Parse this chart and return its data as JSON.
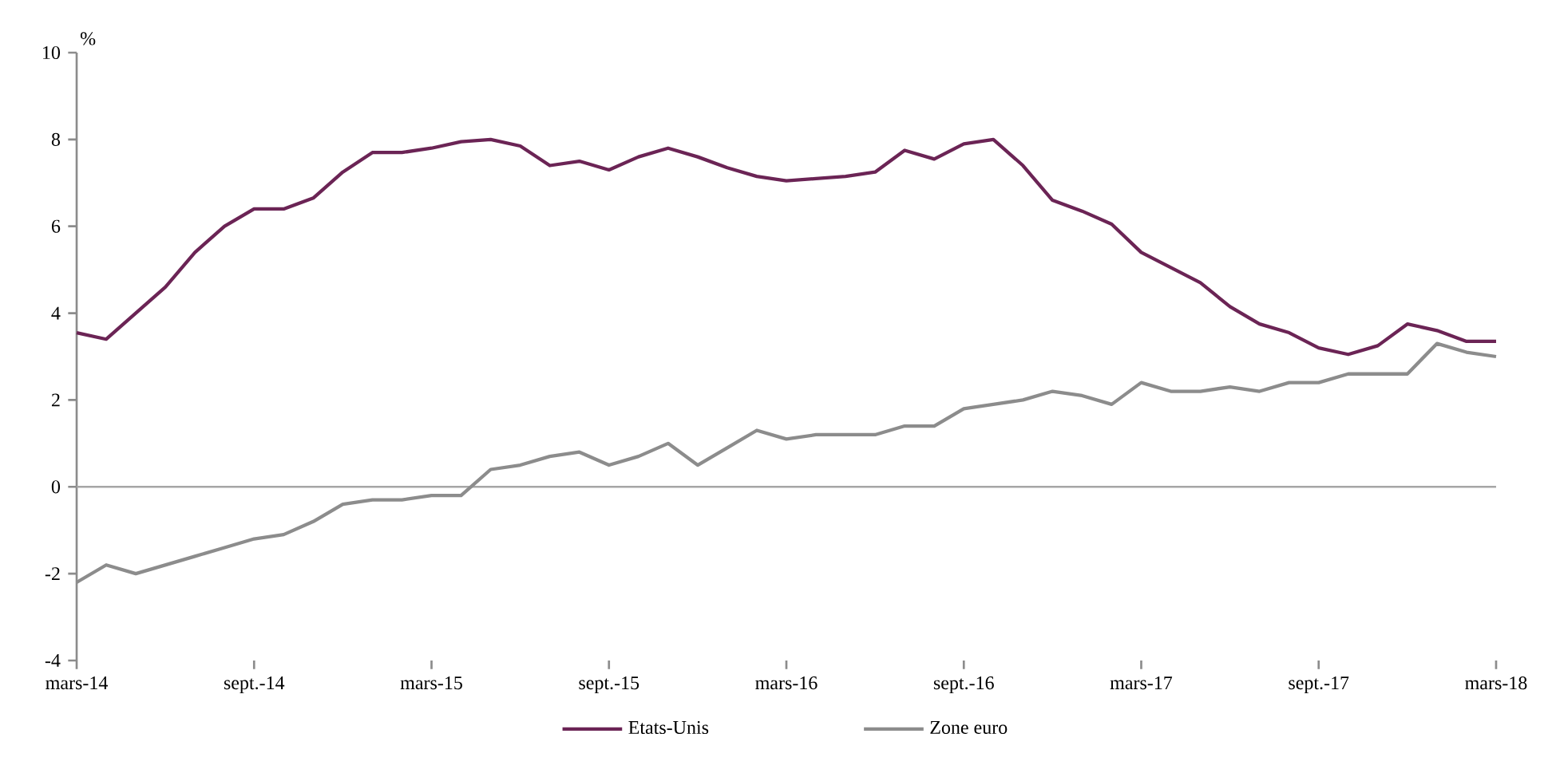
{
  "chart_data": {
    "type": "line",
    "ylabel": "%",
    "categories": [
      "mars-14",
      null,
      null,
      null,
      null,
      null,
      "sept.-14",
      null,
      null,
      null,
      null,
      null,
      "mars-15",
      null,
      null,
      null,
      null,
      null,
      "sept.-15",
      null,
      null,
      null,
      null,
      null,
      "mars-16",
      null,
      null,
      null,
      null,
      null,
      "sept.-16",
      null,
      null,
      null,
      null,
      null,
      "mars-17",
      null,
      null,
      null,
      null,
      null,
      "sept.-17",
      null,
      null,
      null,
      null,
      null,
      "mars-18"
    ],
    "series": [
      {
        "name": "Etats-Unis",
        "color": "#6b2455",
        "values": [
          3.55,
          3.4,
          4.0,
          4.6,
          5.4,
          6.0,
          6.4,
          6.4,
          6.65,
          7.25,
          7.7,
          7.7,
          7.8,
          7.95,
          8.0,
          7.85,
          7.4,
          7.5,
          7.3,
          7.6,
          7.8,
          7.6,
          7.35,
          7.15,
          7.05,
          7.1,
          7.15,
          7.25,
          7.75,
          7.55,
          7.9,
          8.0,
          7.4,
          6.6,
          6.35,
          6.05,
          5.4,
          5.05,
          4.7,
          4.15,
          3.75,
          3.55,
          3.2,
          3.05,
          3.25,
          3.75,
          3.6,
          3.35,
          3.35
        ]
      },
      {
        "name": "Zone euro",
        "color": "#8c8c8c",
        "values": [
          -2.2,
          -1.8,
          -2.0,
          -1.8,
          -1.6,
          -1.4,
          -1.2,
          -1.1,
          -0.8,
          -0.4,
          -0.3,
          -0.3,
          -0.2,
          -0.2,
          0.4,
          0.5,
          0.7,
          0.8,
          0.5,
          0.7,
          1.0,
          0.5,
          0.9,
          1.3,
          1.1,
          1.2,
          1.2,
          1.2,
          1.4,
          1.4,
          1.8,
          1.9,
          2.0,
          2.2,
          2.1,
          1.9,
          2.4,
          2.2,
          2.2,
          2.3,
          2.2,
          2.4,
          2.4,
          2.6,
          2.6,
          2.6,
          3.3,
          3.1,
          3.0
        ]
      }
    ],
    "ref_lines": [
      {
        "axis": "y",
        "value": 0,
        "color": "#a6a6a6"
      }
    ],
    "ylim": [
      -4,
      10
    ],
    "yticks": [
      -4,
      -2,
      0,
      2,
      4,
      6,
      8,
      10
    ],
    "grid": false,
    "legend": "bottom"
  }
}
